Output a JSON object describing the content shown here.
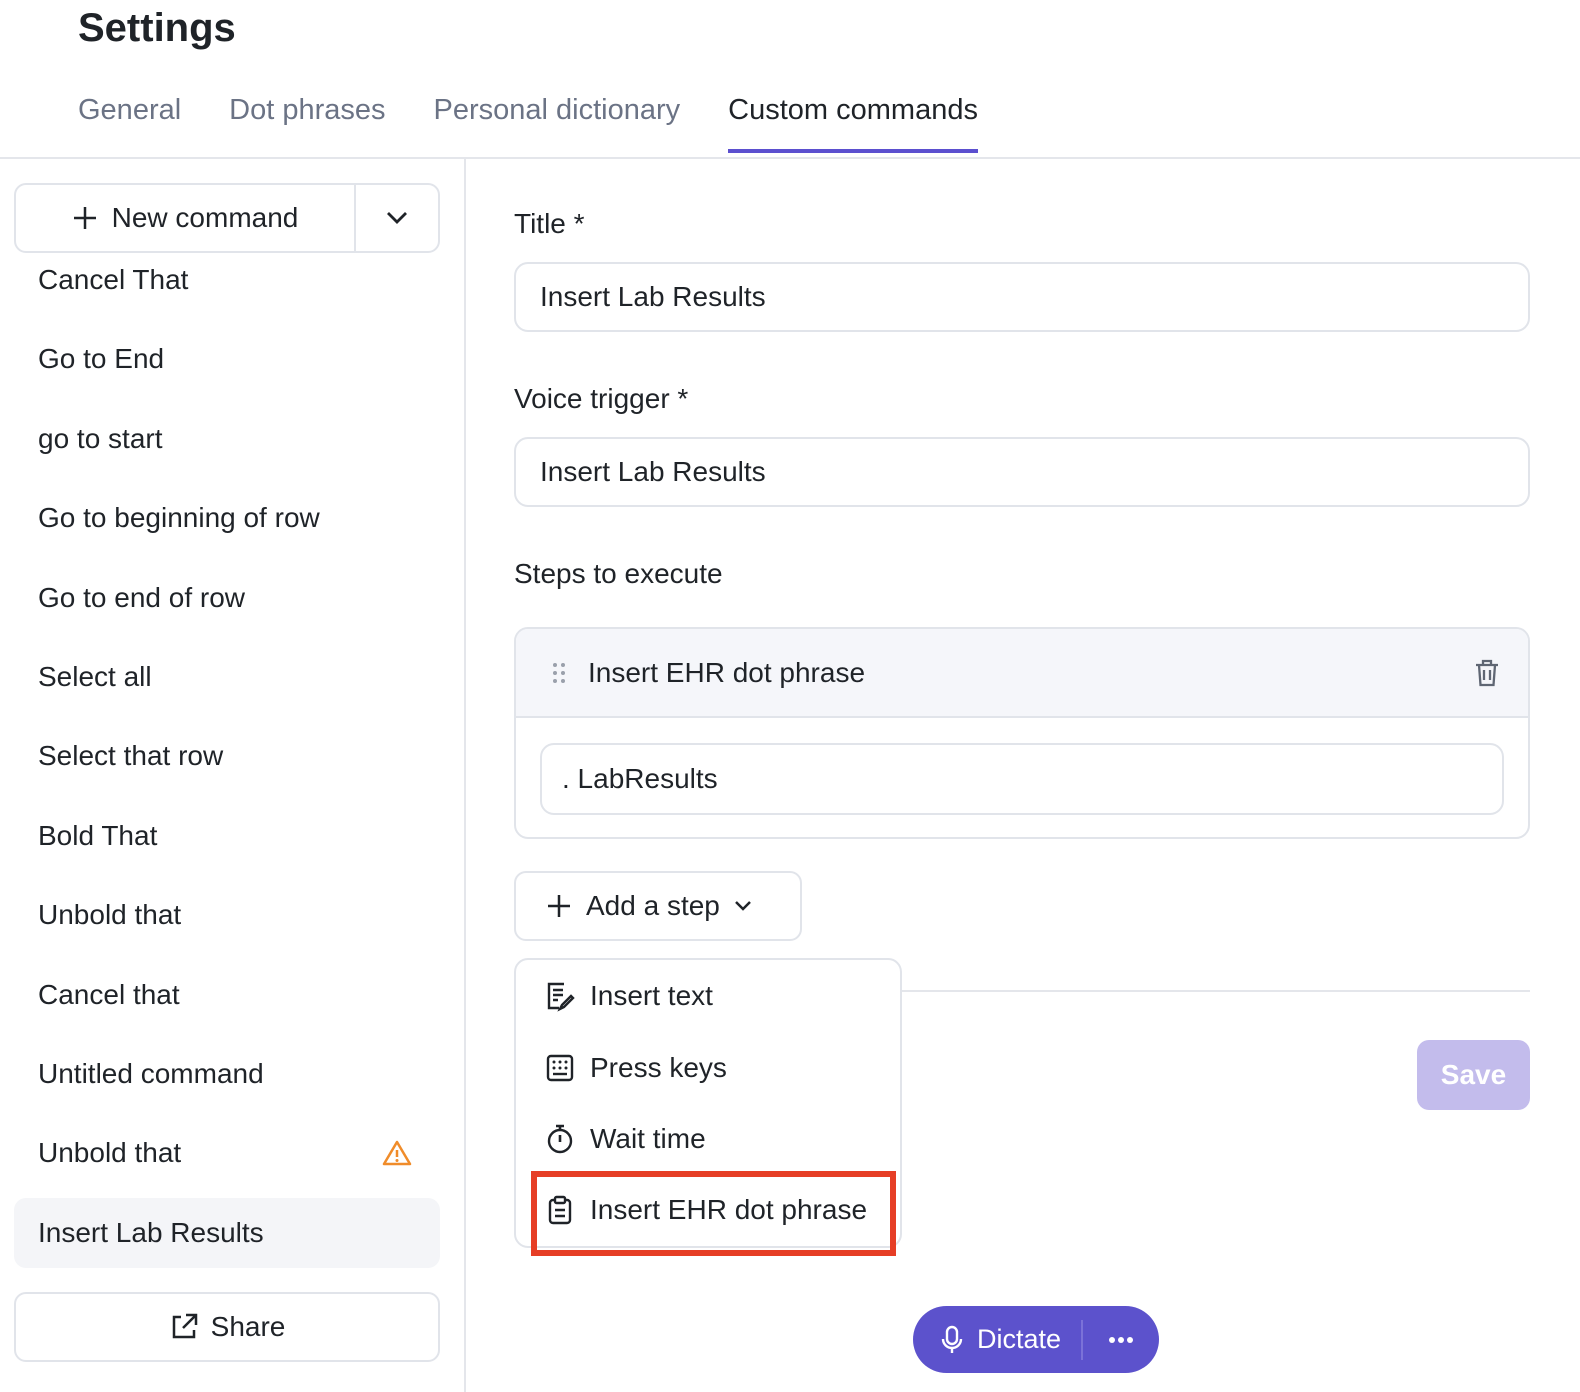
{
  "header": {
    "title": "Settings"
  },
  "tabs": [
    {
      "label": "General"
    },
    {
      "label": "Dot phrases"
    },
    {
      "label": "Personal dictionary"
    },
    {
      "label": "Custom commands",
      "active": true
    }
  ],
  "sidebar": {
    "new_command": "New command",
    "share": "Share",
    "items": [
      {
        "label": "Cancel That"
      },
      {
        "label": "Go to End"
      },
      {
        "label": "go to start"
      },
      {
        "label": "Go to beginning of row"
      },
      {
        "label": "Go to end of row"
      },
      {
        "label": "Select all"
      },
      {
        "label": "Select that row"
      },
      {
        "label": "Bold That"
      },
      {
        "label": "Unbold that"
      },
      {
        "label": "Cancel that"
      },
      {
        "label": "Untitled command"
      },
      {
        "label": "Unbold that",
        "warning": true
      },
      {
        "label": "Insert Lab Results",
        "selected": true
      }
    ]
  },
  "form": {
    "title_label": "Title *",
    "title_value": "Insert Lab Results",
    "trigger_label": "Voice trigger *",
    "trigger_value": "Insert Lab Results",
    "steps_label": "Steps to execute",
    "step": {
      "title": "Insert EHR dot phrase",
      "value": ". LabResults"
    },
    "add_step": "Add a step",
    "save": "Save"
  },
  "menu": {
    "items": [
      {
        "label": "Insert text",
        "icon": "edit-note-icon"
      },
      {
        "label": "Press keys",
        "icon": "keyboard-icon"
      },
      {
        "label": "Wait time",
        "icon": "stopwatch-icon"
      },
      {
        "label": "Insert EHR dot phrase",
        "icon": "clipboard-icon",
        "highlighted": true
      }
    ]
  },
  "dictate": {
    "label": "Dictate"
  },
  "colors": {
    "accent": "#5c52cc",
    "highlight": "#e63e26",
    "warning": "#f08c2a",
    "save_disabled": "#c3bcec"
  }
}
